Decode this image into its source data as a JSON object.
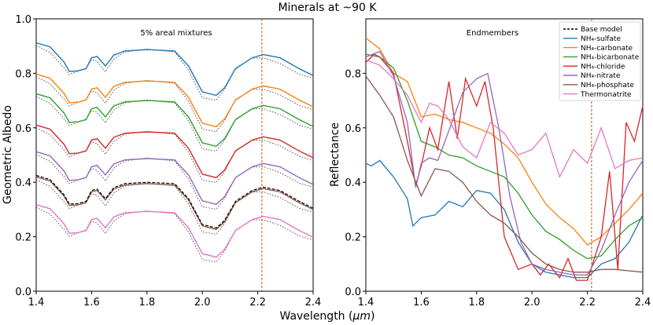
{
  "figure": {
    "suptitle": "Minerals at ~90 K",
    "xlabel_prefix": "Wavelength (",
    "xlabel_unit": "μm",
    "xlabel_suffix": ")"
  },
  "chart_data": [
    {
      "type": "line",
      "panel": "left",
      "title": "5% areal mixtures",
      "xlabel": "Wavelength (μm)",
      "ylabel": "Geometric Albedo",
      "xlim": [
        1.4,
        2.4
      ],
      "ylim": [
        0.0,
        1.0
      ],
      "xticks": [
        "1.4",
        "1.6",
        "1.8",
        "2.0",
        "2.2",
        "2.4"
      ],
      "yticks": [
        "0.0",
        "0.2",
        "0.4",
        "0.6",
        "0.8",
        "1.0"
      ],
      "vline": 2.215,
      "series": [
        {
          "name": "NH4-sulfate mixture",
          "color": "#1f77b4",
          "offset": 0.0,
          "solid_base": 0.912
        },
        {
          "name": "NH4-carbonate mixture",
          "color": "#ff7f0e",
          "offset": -0.118,
          "solid_base": 0.797
        },
        {
          "name": "NH4-bicarbonate mixture",
          "color": "#2ca02c",
          "offset": -0.19,
          "solid_base": 0.725
        },
        {
          "name": "NH4-chloride mixture",
          "color": "#d62728",
          "offset": -0.3,
          "solid_base": 0.61
        },
        {
          "name": "NH4-nitrate mixture",
          "color": "#9467bd",
          "offset": -0.4,
          "solid_base": 0.512
        },
        {
          "name": "NH4-phosphate mixture",
          "color": "#8c564b",
          "offset": -0.49,
          "solid_base": 0.42
        },
        {
          "name": "Thermonatrite mixture",
          "color": "#e377c2",
          "offset": -0.6,
          "solid_base": 0.318
        }
      ],
      "base_model": {
        "x": [
          1.4,
          1.45,
          1.5,
          1.52,
          1.55,
          1.58,
          1.6,
          1.62,
          1.65,
          1.68,
          1.72,
          1.8,
          1.9,
          1.95,
          2.0,
          2.05,
          2.08,
          2.12,
          2.18,
          2.22,
          2.28,
          2.35,
          2.4
        ],
        "y": [
          0.425,
          0.41,
          0.355,
          0.32,
          0.322,
          0.33,
          0.37,
          0.375,
          0.34,
          0.38,
          0.395,
          0.4,
          0.395,
          0.34,
          0.245,
          0.232,
          0.26,
          0.33,
          0.37,
          0.382,
          0.37,
          0.33,
          0.305
        ]
      }
    },
    {
      "type": "line",
      "panel": "right",
      "title": "Endmembers",
      "xlabel": "Wavelength (μm)",
      "ylabel": "Reflectance",
      "xlim": [
        1.4,
        2.4
      ],
      "ylim": [
        0.0,
        1.0
      ],
      "xticks": [
        "1.4",
        "1.6",
        "1.8",
        "2.0",
        "2.2",
        "2.4"
      ],
      "yticks": [
        "0.0",
        "0.2",
        "0.4",
        "0.6",
        "0.8"
      ],
      "vline": 2.215,
      "legend_position": "top-right",
      "series": [
        {
          "name": "NH4-sulfate",
          "color": "#1f77b4",
          "x": [
            1.4,
            1.42,
            1.45,
            1.5,
            1.55,
            1.57,
            1.6,
            1.65,
            1.7,
            1.75,
            1.8,
            1.85,
            1.9,
            1.95,
            2.0,
            2.05,
            2.1,
            2.15,
            2.2,
            2.25,
            2.3,
            2.35,
            2.4
          ],
          "y": [
            0.47,
            0.46,
            0.48,
            0.42,
            0.34,
            0.24,
            0.27,
            0.28,
            0.33,
            0.31,
            0.37,
            0.36,
            0.3,
            0.18,
            0.1,
            0.07,
            0.06,
            0.05,
            0.05,
            0.1,
            0.12,
            0.18,
            0.28
          ]
        },
        {
          "name": "NH4-carbonate",
          "color": "#ff7f0e",
          "x": [
            1.4,
            1.45,
            1.5,
            1.55,
            1.6,
            1.65,
            1.7,
            1.75,
            1.8,
            1.85,
            1.9,
            1.95,
            2.0,
            2.05,
            2.1,
            2.15,
            2.2,
            2.25,
            2.3,
            2.35,
            2.4
          ],
          "y": [
            0.93,
            0.89,
            0.8,
            0.77,
            0.64,
            0.65,
            0.63,
            0.62,
            0.6,
            0.58,
            0.54,
            0.49,
            0.4,
            0.32,
            0.27,
            0.23,
            0.17,
            0.2,
            0.25,
            0.3,
            0.36
          ]
        },
        {
          "name": "NH4-bicarbonate",
          "color": "#2ca02c",
          "x": [
            1.4,
            1.45,
            1.5,
            1.55,
            1.6,
            1.65,
            1.7,
            1.75,
            1.8,
            1.85,
            1.9,
            1.95,
            2.0,
            2.05,
            2.1,
            2.15,
            2.2,
            2.25,
            2.3,
            2.35,
            2.4
          ],
          "y": [
            0.87,
            0.86,
            0.82,
            0.7,
            0.55,
            0.53,
            0.5,
            0.49,
            0.46,
            0.44,
            0.42,
            0.36,
            0.28,
            0.22,
            0.19,
            0.15,
            0.12,
            0.13,
            0.19,
            0.24,
            0.27
          ]
        },
        {
          "name": "NH4-chloride",
          "color": "#d62728",
          "x": [
            1.4,
            1.43,
            1.45,
            1.5,
            1.55,
            1.58,
            1.6,
            1.63,
            1.66,
            1.7,
            1.73,
            1.76,
            1.8,
            1.83,
            1.86,
            1.9,
            1.95,
            2.0,
            2.03,
            2.06,
            2.1,
            2.13,
            2.16,
            2.2,
            2.25,
            2.28,
            2.31,
            2.34,
            2.37,
            2.4
          ],
          "y": [
            0.84,
            0.87,
            0.86,
            0.8,
            0.55,
            0.39,
            0.46,
            0.6,
            0.52,
            0.77,
            0.56,
            0.78,
            0.68,
            0.77,
            0.6,
            0.2,
            0.08,
            0.1,
            0.06,
            0.1,
            0.05,
            0.12,
            0.04,
            0.04,
            0.2,
            0.44,
            0.08,
            0.62,
            0.55,
            0.68
          ]
        },
        {
          "name": "NH4-nitrate",
          "color": "#9467bd",
          "x": [
            1.4,
            1.45,
            1.5,
            1.55,
            1.58,
            1.6,
            1.63,
            1.66,
            1.7,
            1.75,
            1.8,
            1.84,
            1.88,
            1.92,
            1.96,
            2.0,
            2.05,
            2.1,
            2.15,
            2.2,
            2.25,
            2.3,
            2.35,
            2.4
          ],
          "y": [
            0.86,
            0.88,
            0.79,
            0.62,
            0.38,
            0.47,
            0.49,
            0.48,
            0.59,
            0.73,
            0.78,
            0.8,
            0.6,
            0.35,
            0.18,
            0.1,
            0.08,
            0.07,
            0.06,
            0.06,
            0.15,
            0.28,
            0.4,
            0.48
          ]
        },
        {
          "name": "NH4-phosphate",
          "color": "#8c564b",
          "x": [
            1.4,
            1.45,
            1.5,
            1.55,
            1.6,
            1.65,
            1.7,
            1.75,
            1.8,
            1.85,
            1.9,
            1.95,
            2.0,
            2.05,
            2.1,
            2.15,
            2.2,
            2.25,
            2.3,
            2.35,
            2.4
          ],
          "y": [
            0.79,
            0.72,
            0.64,
            0.48,
            0.35,
            0.45,
            0.44,
            0.4,
            0.33,
            0.28,
            0.25,
            0.2,
            0.14,
            0.1,
            0.08,
            0.07,
            0.07,
            0.08,
            0.08,
            0.075,
            0.07
          ]
        },
        {
          "name": "Thermonatrite",
          "color": "#e377c2",
          "x": [
            1.4,
            1.45,
            1.5,
            1.55,
            1.6,
            1.63,
            1.66,
            1.7,
            1.75,
            1.8,
            1.85,
            1.9,
            1.95,
            2.0,
            2.05,
            2.1,
            2.15,
            2.2,
            2.25,
            2.3,
            2.35,
            2.4
          ],
          "y": [
            0.85,
            0.83,
            0.78,
            0.72,
            0.62,
            0.69,
            0.68,
            0.63,
            0.53,
            0.49,
            0.62,
            0.58,
            0.5,
            0.52,
            0.58,
            0.42,
            0.52,
            0.47,
            0.6,
            0.45,
            0.48,
            0.49
          ]
        }
      ],
      "base_model_dashed": true
    }
  ],
  "legend": {
    "items": [
      {
        "label": "Base model",
        "color": "#000000",
        "dashed": true
      },
      {
        "label": "NH₄-sulfate",
        "color": "#1f77b4"
      },
      {
        "label": "NH₄-carbonate",
        "color": "#ff7f0e"
      },
      {
        "label": "NH₄-bicarbonate",
        "color": "#2ca02c"
      },
      {
        "label": "NH₄-chloride",
        "color": "#d62728"
      },
      {
        "label": "NH₄-nitrate",
        "color": "#9467bd"
      },
      {
        "label": "NH₄-phosphate",
        "color": "#8c564b"
      },
      {
        "label": "Thermonatrite",
        "color": "#e377c2"
      }
    ]
  }
}
